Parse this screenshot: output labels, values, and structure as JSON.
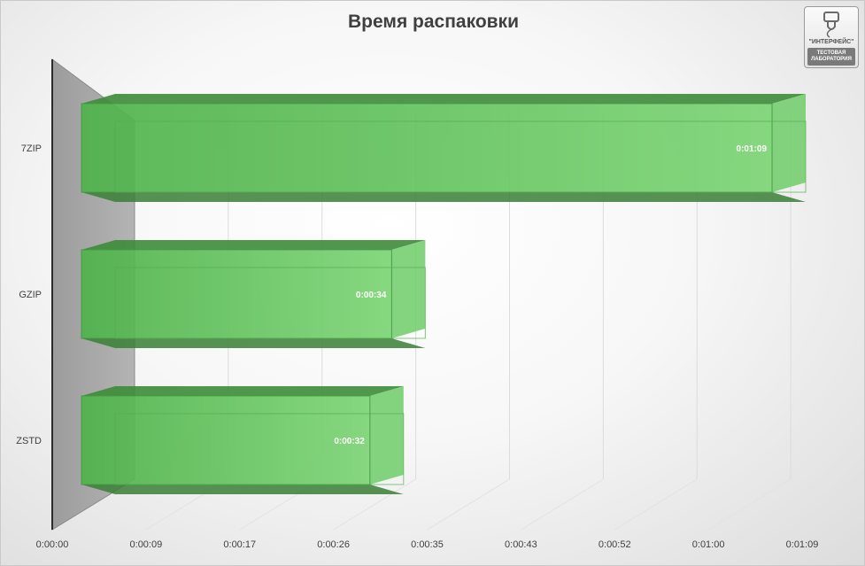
{
  "chart_data": {
    "type": "bar",
    "orientation": "horizontal",
    "style": "3d",
    "title": "Время распаковки",
    "categories": [
      "7ZIP",
      "GZIP",
      "ZSTD"
    ],
    "values_seconds": [
      69,
      34,
      32
    ],
    "value_labels": [
      "0:01:09",
      "0:00:34",
      "0:00:32"
    ],
    "x_ticks": [
      "0:00:00",
      "0:00:09",
      "0:00:17",
      "0:00:26",
      "0:00:35",
      "0:00:43",
      "0:00:52",
      "0:01:00",
      "0:01:09"
    ],
    "xlim_seconds": [
      0,
      69
    ],
    "grid": true,
    "bar_color": "#5fc35a",
    "bar_edge_color": "#3f9a3c",
    "bar_top_color": "#3e8b3a"
  },
  "logo": {
    "name": "\"ИНТЕРФЕЙС\"",
    "line1": "ТЕСТОВАЯ",
    "line2": "ЛАБОРАТОРИЯ"
  }
}
